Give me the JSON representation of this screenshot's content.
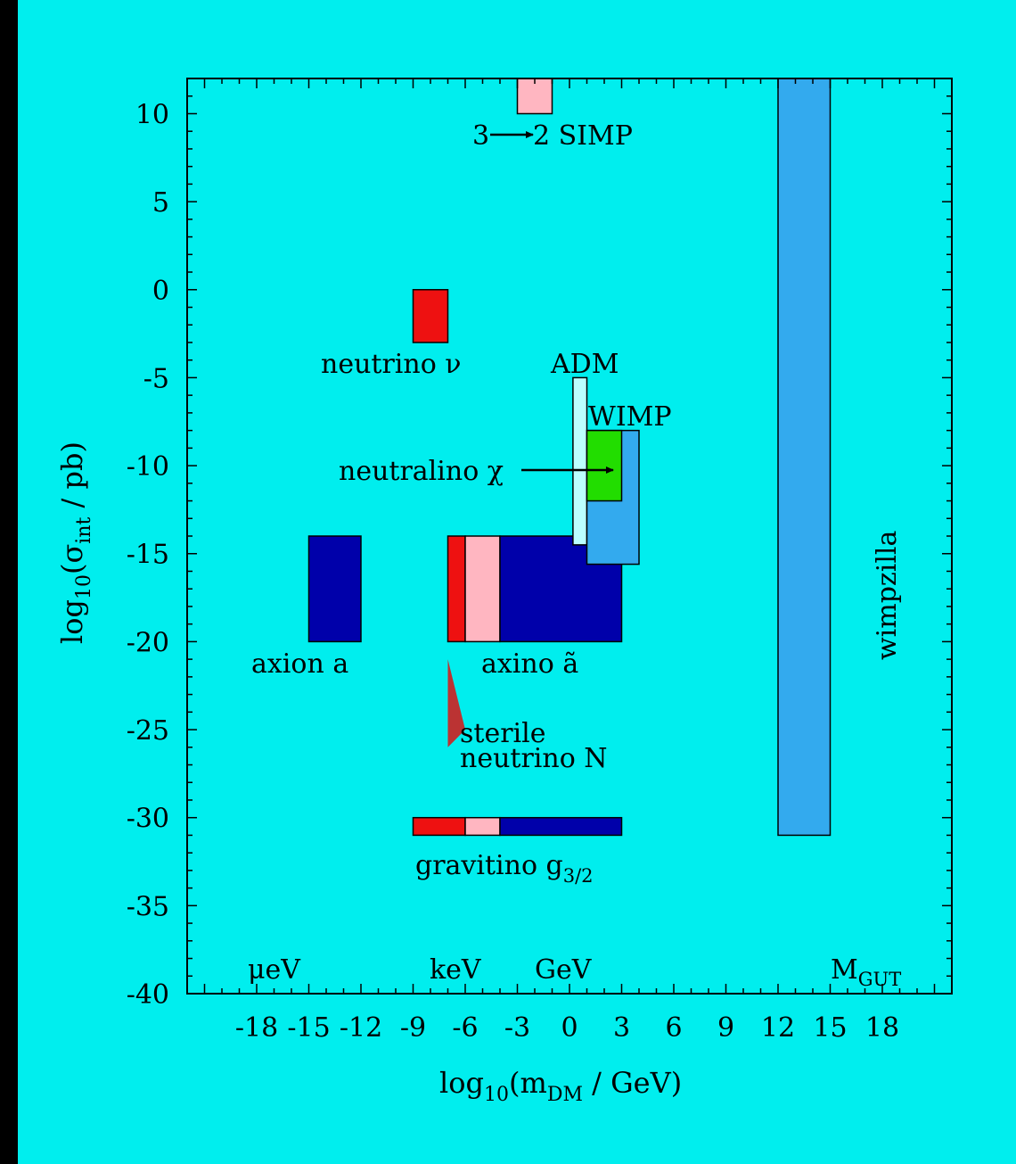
{
  "colors": {
    "background": "#00eeee",
    "page_border": "#000000",
    "red": "#ee1111",
    "pink": "#ffb6c1",
    "navy": "#0000aa",
    "sky": "#33aaee",
    "light_cyan": "#bbffff",
    "green": "#22dd00",
    "maroon": "#bb3333"
  },
  "chart_data": {
    "type": "region-plot",
    "xlabel": {
      "base": "log",
      "sub": "10",
      "mid": "(m",
      "sub2": "DM",
      "tail": " / GeV)"
    },
    "ylabel": {
      "base": "log",
      "sub": "10",
      "mid": "(σ",
      "sub2": "int",
      "tail": " / pb)"
    },
    "xlim": [
      -22,
      22
    ],
    "ylim": [
      -40,
      12
    ],
    "x_ticks": [
      -18,
      -15,
      -12,
      -9,
      -6,
      -3,
      0,
      3,
      6,
      9,
      12,
      15,
      18
    ],
    "y_ticks": [
      10,
      5,
      0,
      -5,
      -10,
      -15,
      -20,
      -25,
      -30,
      -35,
      -40
    ],
    "grid": false,
    "regions": [
      {
        "name": "3→2 SIMP",
        "x": [
          -3,
          -1
        ],
        "y": [
          10,
          12
        ],
        "color": "pink"
      },
      {
        "name": "neutrino ν",
        "x": [
          -9,
          -7
        ],
        "y": [
          -3,
          0
        ],
        "color": "red"
      },
      {
        "name": "axion a",
        "x": [
          -15,
          -12
        ],
        "y": [
          -20,
          -14
        ],
        "color": "navy"
      },
      {
        "name": "axino red",
        "x": [
          -7,
          -6
        ],
        "y": [
          -20,
          -14
        ],
        "color": "red"
      },
      {
        "name": "axino pink",
        "x": [
          -6,
          -4
        ],
        "y": [
          -20,
          -14
        ],
        "color": "pink"
      },
      {
        "name": "axino navy",
        "x": [
          -4,
          3
        ],
        "y": [
          -20,
          -14
        ],
        "color": "navy"
      },
      {
        "name": "ADM",
        "x": [
          0.2,
          1
        ],
        "y": [
          -14.5,
          -5
        ],
        "color": "light_cyan"
      },
      {
        "name": "WIMP",
        "x": [
          1,
          4
        ],
        "y": [
          -15.6,
          -8
        ],
        "color": "sky"
      },
      {
        "name": "neutralino χ",
        "x": [
          1,
          3
        ],
        "y": [
          -12,
          -8
        ],
        "color": "green"
      },
      {
        "name": "gravitino red",
        "x": [
          -9,
          -6
        ],
        "y": [
          -31,
          -30
        ],
        "color": "red"
      },
      {
        "name": "gravitino pink",
        "x": [
          -6,
          -4
        ],
        "y": [
          -31,
          -30
        ],
        "color": "pink"
      },
      {
        "name": "gravitino navy",
        "x": [
          -4,
          3
        ],
        "y": [
          -31,
          -30
        ],
        "color": "navy"
      },
      {
        "name": "wimpzilla",
        "x": [
          12,
          15
        ],
        "y": [
          -31,
          12
        ],
        "color": "sky"
      }
    ],
    "sterile_triangle": {
      "points": [
        [
          -7,
          -21
        ],
        [
          -7,
          -26
        ],
        [
          -6,
          -25
        ]
      ],
      "color": "maroon"
    },
    "annotations": {
      "simp": {
        "pre": "3",
        "post": "2 SIMP"
      },
      "neutrino": "neutrino ν",
      "adm": "ADM",
      "wimp": "WIMP",
      "neutralino": "neutralino χ",
      "axion": "axion a",
      "axino": "axino ã",
      "sterile1": "sterile",
      "sterile2": "neutrino N",
      "gravitino": "gravitino g",
      "gravitino_sub": "3/2",
      "wimpzilla": "wimpzilla",
      "uev": "μeV",
      "kev": "keV",
      "gev": "GeV",
      "mgut": "M",
      "mgut_sub": "GUT"
    }
  }
}
